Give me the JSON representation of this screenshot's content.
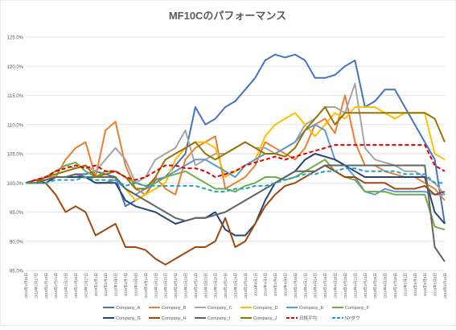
{
  "chart_data": {
    "type": "line",
    "title": "MF10Cのパフォーマンス",
    "ylim": [
      85,
      125
    ],
    "yticks": [
      85,
      90,
      95,
      100,
      105,
      110,
      115,
      120,
      125
    ],
    "ytick_labels": [
      "85.0%",
      "90.0%",
      "95.0%",
      "100.0%",
      "105.0%",
      "110.0%",
      "115.0%",
      "120.0%",
      "125.0%"
    ],
    "grid": true,
    "legend_position": "bottom",
    "x": [
      "2019年2月15日",
      "2019年2月17日",
      "2019年2月19日",
      "2019年2月21日",
      "2019年2月23日",
      "2019年2月25日",
      "2019年2月27日",
      "2019年3月1日",
      "2019年3月3日",
      "2019年3月5日",
      "2019年3月7日",
      "2019年3月9日",
      "2019年3月11日",
      "2019年3月13日",
      "2019年3月15日",
      "2019年3月17日",
      "2019年3月19日",
      "2019年3月21日",
      "2019年3月23日",
      "2019年3月25日",
      "2019年3月27日",
      "2019年3月29日",
      "2019年3月31日",
      "2019年4月2日",
      "2019年4月4日",
      "2019年4月6日",
      "2019年4月8日",
      "2019年4月10日",
      "2019年4月12日",
      "2019年4月14日",
      "2019年4月16日",
      "2019年4月18日",
      "2019年4月20日",
      "2019年4月22日",
      "2019年4月24日",
      "2019年4月26日",
      "2019年4月28日",
      "2019年4月30日",
      "2019年5月2日",
      "2019年5月4日",
      "2019年5月6日",
      "2019年5月8日",
      "2019年5月10日"
    ],
    "series": [
      {
        "name": "Company_A",
        "color": "#4472C4",
        "dash": false,
        "values": [
          100,
          100,
          100.5,
          101,
          101,
          101.5,
          101.5,
          102,
          101.5,
          101,
          96,
          97,
          98,
          100.5,
          101,
          103,
          105,
          113,
          110,
          111,
          113,
          114,
          116,
          118,
          121,
          122,
          121.5,
          122,
          121,
          118,
          118,
          118.5,
          120,
          121,
          113,
          114,
          116,
          116,
          113,
          110,
          107,
          104,
          93
        ]
      },
      {
        "name": "Company_B",
        "color": "#ED7D31",
        "dash": false,
        "values": [
          100,
          100.5,
          101,
          101,
          104,
          106,
          107,
          101,
          109,
          110.5,
          103,
          99,
          98,
          101,
          99,
          98,
          104,
          106,
          107,
          108,
          99,
          100,
          101,
          103,
          107,
          106,
          105,
          104,
          106,
          110,
          111,
          108.5,
          115,
          107,
          103,
          103,
          102,
          101.5,
          101,
          101,
          100,
          99,
          97
        ]
      },
      {
        "name": "Company_C",
        "color": "#A5A5A5",
        "dash": false,
        "values": [
          100,
          100.5,
          101,
          102,
          103,
          102.5,
          103,
          102,
          104,
          106,
          104,
          100,
          101,
          104,
          105,
          106,
          109,
          103,
          104,
          105,
          105,
          106,
          107,
          106,
          106,
          105,
          106,
          107,
          110,
          111,
          113,
          113,
          112,
          117,
          106,
          104,
          103.5,
          103,
          102,
          102,
          101,
          100,
          98
        ]
      },
      {
        "name": "Company_D",
        "color": "#FFC000",
        "dash": false,
        "values": [
          100,
          100,
          100,
          101,
          101,
          101.5,
          101,
          100,
          100,
          101,
          99,
          97,
          98,
          99,
          100,
          104,
          106,
          107,
          107,
          106,
          101,
          102,
          103,
          104,
          108,
          110,
          111,
          112,
          110,
          108,
          110,
          112,
          111,
          113,
          113,
          113,
          112,
          111,
          112,
          112,
          112,
          105,
          104
        ]
      },
      {
        "name": "Company_E",
        "color": "#5B9BD5",
        "dash": false,
        "values": [
          100,
          100,
          100,
          101,
          101,
          101,
          101,
          100,
          100,
          100.5,
          99,
          98,
          99,
          100,
          101,
          102,
          103,
          104,
          104,
          103,
          102,
          101,
          103,
          104,
          105,
          105,
          106,
          107,
          109,
          110,
          109,
          104,
          103,
          101,
          98.5,
          98,
          99,
          98.5,
          98.5,
          98.5,
          98.5,
          98,
          98
        ]
      },
      {
        "name": "Company_F",
        "color": "#70AD47",
        "dash": false,
        "values": [
          100,
          100,
          101,
          102,
          103,
          103.5,
          102,
          101,
          102,
          102,
          101,
          100,
          99.5,
          100,
          101,
          101.5,
          102,
          101,
          100,
          99,
          99,
          98.5,
          99.5,
          100,
          101,
          101,
          100.5,
          101,
          102,
          103,
          104,
          102,
          101,
          100.5,
          98.5,
          98.5,
          98.5,
          98,
          98,
          98,
          98,
          92.5,
          92
        ]
      },
      {
        "name": "Company_G",
        "color": "#264478",
        "dash": false,
        "values": [
          100,
          100,
          100,
          101,
          101,
          101,
          101,
          100,
          100,
          100,
          97,
          96,
          95.5,
          95,
          94,
          93,
          93.5,
          94,
          94,
          95,
          92,
          91,
          91,
          93,
          97,
          100,
          101,
          102,
          104,
          105,
          104.5,
          104,
          103,
          102,
          101,
          101,
          101,
          101,
          101,
          101,
          101,
          95,
          93
        ]
      },
      {
        "name": "Company_H",
        "color": "#9E480E",
        "dash": false,
        "values": [
          100,
          100.5,
          100,
          98,
          95,
          96,
          95,
          91,
          92,
          93,
          89,
          89,
          88.5,
          87,
          86,
          87,
          88,
          89,
          89,
          90,
          94,
          89,
          90,
          93,
          96,
          98,
          99.5,
          100,
          101,
          102,
          103,
          102,
          101,
          101,
          100,
          100,
          100,
          99,
          99,
          99,
          99.5,
          98,
          98.5
        ]
      },
      {
        "name": "Company_I",
        "color": "#636363",
        "dash": false,
        "values": [
          100,
          100,
          100.5,
          101,
          101,
          101.5,
          101,
          101,
          101,
          101,
          99,
          98,
          97,
          96,
          95,
          94,
          93.5,
          94,
          94,
          94.5,
          95,
          96,
          97,
          98,
          99,
          100,
          101,
          102,
          102,
          102,
          103,
          103,
          103,
          103,
          103,
          103,
          103,
          103,
          103,
          103,
          103,
          89,
          86.5
        ]
      },
      {
        "name": "Company_J",
        "color": "#997300",
        "dash": false,
        "values": [
          100,
          100,
          101,
          101.5,
          102,
          102.5,
          103,
          101,
          101.5,
          102,
          101,
          99,
          99,
          101,
          104,
          105,
          106,
          107,
          105,
          104,
          105,
          106,
          107,
          106,
          105,
          105,
          104.5,
          106,
          109,
          111,
          113,
          110,
          112,
          112,
          112,
          112,
          112,
          112,
          112,
          112,
          112,
          111,
          107
        ]
      },
      {
        "name": "日経平均",
        "color": "#E00000",
        "dash": true,
        "values": [
          100,
          100.5,
          101,
          102,
          102.5,
          103,
          102.5,
          103,
          102,
          102,
          101,
          100.5,
          101,
          102,
          103,
          103,
          102.5,
          102.5,
          102,
          101,
          101.5,
          102,
          103,
          103.5,
          104,
          104.5,
          104,
          104.5,
          105,
          105.5,
          106,
          106.5,
          106.5,
          106.5,
          106.5,
          106.5,
          106.5,
          106.5,
          106.5,
          106.5,
          106.5,
          103,
          102
        ]
      },
      {
        "name": "NYダウ",
        "color": "#1BA3C7",
        "dash": true,
        "values": [
          100,
          100,
          100,
          100.5,
          100.5,
          100.5,
          101,
          100.5,
          100.5,
          100.5,
          99.5,
          100,
          99.5,
          99.5,
          99.5,
          99.5,
          99.5,
          99.5,
          99,
          98.5,
          98.5,
          99,
          99,
          99.5,
          99.5,
          100,
          100.5,
          101,
          101.5,
          101.5,
          102,
          102,
          102.5,
          102.5,
          102,
          102,
          102,
          102,
          101.5,
          101.5,
          101.5,
          100,
          100
        ]
      }
    ]
  }
}
